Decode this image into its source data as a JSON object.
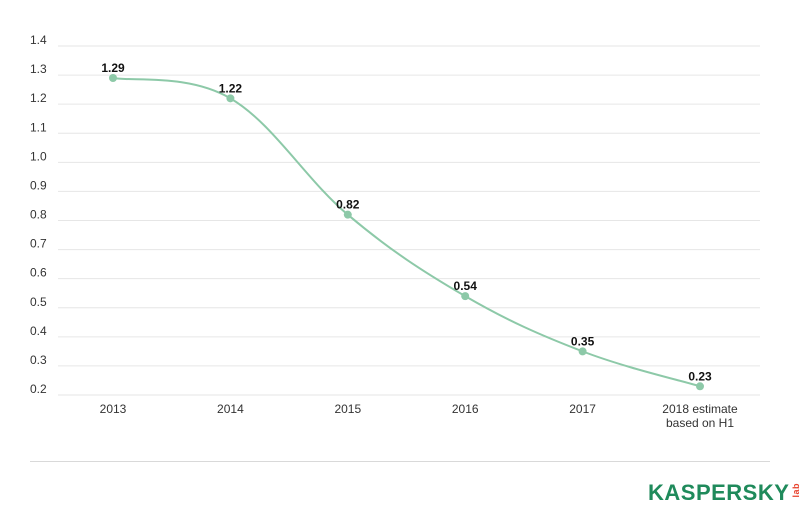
{
  "chart_data": {
    "type": "line",
    "x": [
      "2013",
      "2014",
      "2015",
      "2016",
      "2017",
      "2018 estimate based on H1"
    ],
    "x_label_lines": [
      [
        "2013"
      ],
      [
        "2014"
      ],
      [
        "2015"
      ],
      [
        "2016"
      ],
      [
        "2017"
      ],
      [
        "2018 estimate",
        "based on H1"
      ]
    ],
    "y": [
      1.29,
      1.22,
      0.82,
      0.54,
      0.35,
      0.23
    ],
    "data_labels": [
      "1.29",
      "1.22",
      "0.82",
      "0.54",
      "0.35",
      "0.23"
    ],
    "yticks": [
      "1.4",
      "1.3",
      "1.2",
      "1.1",
      "1.0",
      "0.9",
      "0.8",
      "0.7",
      "0.6",
      "0.5",
      "0.4",
      "0.3",
      "0.2"
    ],
    "ylim": [
      0.2,
      1.4
    ],
    "title": "",
    "xlabel": "",
    "ylabel": "",
    "grid": true,
    "smooth": true,
    "colors": {
      "line": "#8dc9a8",
      "marker": "#8dc9a8",
      "grid": "#e6e6e6"
    }
  },
  "brand": {
    "name": "KASPERSKY",
    "sub": "lab",
    "color": "#1f8a5b",
    "sub_color": "#e8412c"
  }
}
